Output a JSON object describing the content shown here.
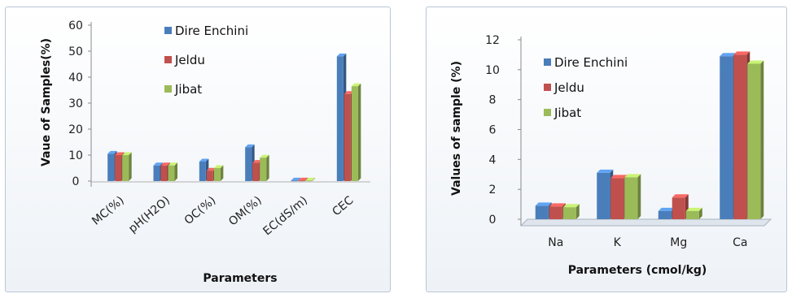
{
  "chart_data": [
    {
      "type": "bar",
      "title": "",
      "xlabel": "Parameters",
      "ylabel": "Vaue of Samples(%)",
      "ylim": [
        0,
        60
      ],
      "yticks": [
        0,
        10,
        20,
        30,
        40,
        50,
        60
      ],
      "categories": [
        "MC(%)",
        "pH(H2O)",
        "OC(%)",
        "OM(%)",
        "EC(dS/m)",
        "CEC"
      ],
      "legend_position": "top-center",
      "series": [
        {
          "name": "Dire Enchini",
          "color": "#4a7ebb",
          "values": [
            10.5,
            6.0,
            7.5,
            13.0,
            0.2,
            48.0
          ]
        },
        {
          "name": "Jeldu",
          "color": "#c0504d",
          "values": [
            10.0,
            6.0,
            4.0,
            7.0,
            0.2,
            33.5
          ]
        },
        {
          "name": "Jibat",
          "color": "#9bbb59",
          "values": [
            10.0,
            6.0,
            5.0,
            9.0,
            0.2,
            36.5
          ]
        }
      ]
    },
    {
      "type": "bar",
      "title": "",
      "xlabel": "Parameters (cmol/kg)",
      "ylabel": "Values of sample (%)",
      "ylim": [
        0,
        12
      ],
      "yticks": [
        0,
        2,
        4,
        6,
        8,
        10,
        12
      ],
      "categories": [
        "Na",
        "K",
        "Mg",
        "Ca"
      ],
      "legend_position": "left-center",
      "series": [
        {
          "name": "Dire Enchini",
          "color": "#4a7ebb",
          "values": [
            0.9,
            3.1,
            0.55,
            10.9
          ]
        },
        {
          "name": "Jeldu",
          "color": "#c0504d",
          "values": [
            0.85,
            2.75,
            1.45,
            11.0
          ]
        },
        {
          "name": "Jibat",
          "color": "#9bbb59",
          "values": [
            0.8,
            2.8,
            0.55,
            10.4
          ]
        }
      ]
    }
  ]
}
